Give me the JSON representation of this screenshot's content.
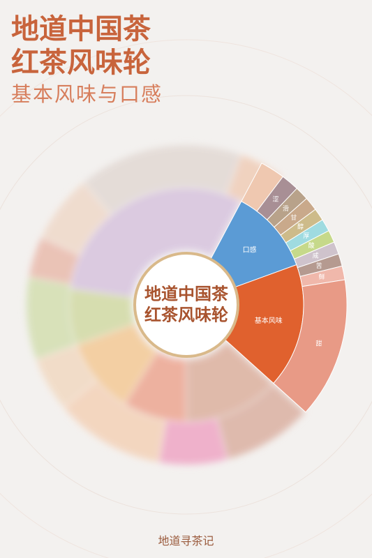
{
  "header": {
    "title": [
      "地道中国茶",
      "红茶风味轮"
    ],
    "subtitle": "基本风味与口感"
  },
  "wheel": {
    "center": [
      "地道中国茶",
      "红茶风味轮"
    ],
    "inner": [
      {
        "label": "口感"
      },
      {
        "label": "基本风味"
      }
    ],
    "outer": [
      {
        "label": "涩"
      },
      {
        "label": "滑"
      },
      {
        "label": "甘"
      },
      {
        "label": "醇"
      },
      {
        "label": "厚"
      },
      {
        "label": "酸"
      },
      {
        "label": "咸"
      },
      {
        "label": "苦"
      },
      {
        "label": "鲜"
      },
      {
        "label": "甜"
      }
    ]
  },
  "footer": "地道寻茶记"
}
